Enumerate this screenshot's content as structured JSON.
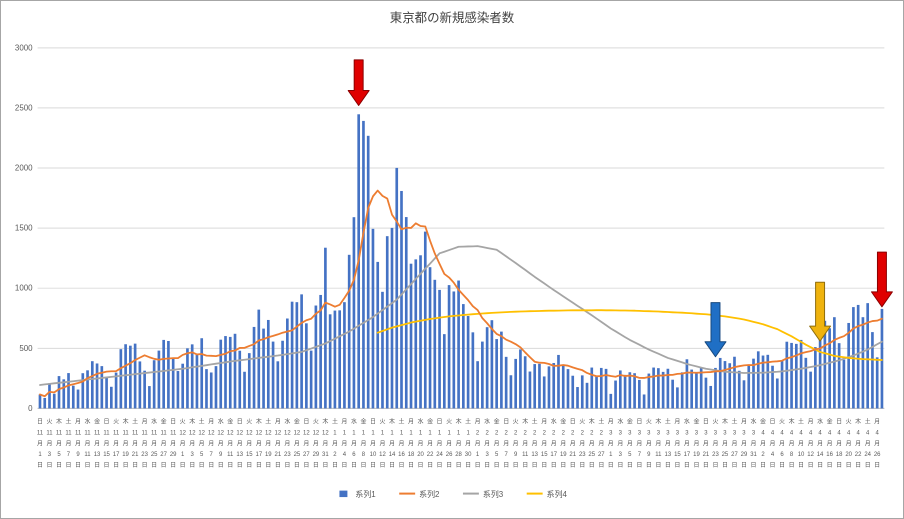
{
  "chart_data": {
    "type": "combo-bar-line",
    "title": "東京都の新規感染者数",
    "legend_position": "bottom",
    "grid": true,
    "y_axis": {
      "min": 0,
      "max": 3000,
      "tick": 500,
      "tick_labels": [
        "0",
        "500",
        "1000",
        "1500",
        "2000",
        "2500",
        "3000"
      ]
    },
    "x_axis": {
      "label_every_days": 2,
      "weekday_chars": [
        "日",
        "月",
        "火",
        "水",
        "木",
        "金",
        "土"
      ],
      "start_weekday_index": 0,
      "month_suffix": "月",
      "day_suffix": "日",
      "months": [
        {
          "m": 11,
          "days": 30
        },
        {
          "m": 12,
          "days": 31
        },
        {
          "m": 1,
          "days": 31
        },
        {
          "m": 2,
          "days": 28
        },
        {
          "m": 3,
          "days": 31
        },
        {
          "m": 4,
          "days": 27
        }
      ]
    },
    "series": [
      {
        "name": "系列1",
        "type": "bar",
        "marker": "square",
        "color": "#4472C4",
        "values": [
          116,
          87,
          209,
          122,
          269,
          242,
          294,
          189,
          157,
          293,
          317,
          393,
          374,
          352,
          255,
          180,
          298,
          493,
          534,
          522,
          539,
          391,
          314,
          186,
          401,
          481,
          570,
          561,
          418,
          311,
          372,
          500,
          533,
          449,
          584,
          327,
          299,
          352,
          572,
          602,
          595,
          621,
          480,
          305,
          460,
          678,
          822,
          664,
          736,
          556,
          392,
          563,
          748,
          888,
          884,
          949,
          708,
          481,
          856,
          944,
          1337,
          783,
          814,
          816,
          884,
          1278,
          1591,
          2447,
          2392,
          2268,
          1494,
          1219,
          970,
          1433,
          1502,
          2001,
          1809,
          1592,
          1204,
          1240,
          1274,
          1471,
          1175,
          1070,
          986,
          618,
          1026,
          973,
          1064,
          868,
          769,
          633,
          393,
          556,
          676,
          734,
          577,
          639,
          429,
          276,
          412,
          491,
          434,
          307,
          369,
          371,
          266,
          350,
          378,
          445,
          353,
          327,
          272,
          178,
          275,
          213,
          340,
          270,
          337,
          329,
          121,
          232,
          316,
          279,
          301,
          293,
          237,
          116,
          290,
          340,
          335,
          304,
          330,
          239,
          175,
          300,
          409,
          323,
          303,
          342,
          256,
          187,
          337,
          420,
          394,
          376,
          430,
          313,
          234,
          364,
          414,
          475,
          440,
          446,
          355,
          249,
          399,
          555,
          545,
          537,
          570,
          421,
          306,
          510,
          591,
          729,
          667,
          759,
          543,
          405,
          711,
          843,
          861,
          759,
          876,
          635,
          425,
          828
        ]
      },
      {
        "name": "系列2",
        "type": "line",
        "marker": "line",
        "color": "#ED7D31",
        "derived": "7-day moving average of 系列1"
      },
      {
        "name": "系列3",
        "type": "line",
        "marker": "line",
        "color": "#A5A5A5",
        "control_points": [
          [
            0,
            195
          ],
          [
            10,
            240
          ],
          [
            20,
            285
          ],
          [
            30,
            330
          ],
          [
            40,
            390
          ],
          [
            50,
            440
          ],
          [
            55,
            470
          ],
          [
            60,
            540
          ],
          [
            65,
            640
          ],
          [
            70,
            760
          ],
          [
            75,
            905
          ],
          [
            80,
            1120
          ],
          [
            84,
            1290
          ],
          [
            88,
            1345
          ],
          [
            92,
            1350
          ],
          [
            96,
            1320
          ],
          [
            100,
            1210
          ],
          [
            104,
            1095
          ],
          [
            108,
            985
          ],
          [
            112,
            880
          ],
          [
            116,
            775
          ],
          [
            120,
            665
          ],
          [
            124,
            570
          ],
          [
            128,
            490
          ],
          [
            132,
            420
          ],
          [
            136,
            370
          ],
          [
            140,
            330
          ],
          [
            144,
            305
          ],
          [
            148,
            295
          ],
          [
            152,
            297
          ],
          [
            156,
            308
          ],
          [
            160,
            330
          ],
          [
            164,
            360
          ],
          [
            168,
            400
          ],
          [
            171,
            440
          ],
          [
            174,
            490
          ],
          [
            177,
            555
          ]
        ]
      },
      {
        "name": "系列4",
        "type": "line",
        "marker": "line",
        "color": "#FFC000",
        "control_points": [
          [
            71,
            630
          ],
          [
            74,
            672
          ],
          [
            78,
            714
          ],
          [
            82,
            744
          ],
          [
            86,
            766
          ],
          [
            90,
            781
          ],
          [
            95,
            795
          ],
          [
            100,
            805
          ],
          [
            106,
            812
          ],
          [
            112,
            816
          ],
          [
            118,
            817
          ],
          [
            124,
            814
          ],
          [
            130,
            806
          ],
          [
            136,
            794
          ],
          [
            140,
            783
          ],
          [
            144,
            766
          ],
          [
            148,
            740
          ],
          [
            152,
            700
          ],
          [
            155,
            660
          ],
          [
            158,
            600
          ],
          [
            161,
            530
          ],
          [
            164,
            470
          ],
          [
            167,
            437
          ],
          [
            170,
            420
          ],
          [
            173,
            410
          ],
          [
            177,
            403
          ]
        ]
      }
    ],
    "annotations": [
      {
        "name": "red-arrow-peak",
        "shape": "down-arrow",
        "fill": "#E00000",
        "stroke": "#8B0000",
        "day": 67,
        "top_value": 2900,
        "tip_value": 2520
      },
      {
        "name": "blue-arrow",
        "shape": "down-arrow",
        "fill": "#1F6FC5",
        "stroke": "#17497F",
        "day": 142,
        "top_value": 880,
        "tip_value": 430
      },
      {
        "name": "gold-arrow",
        "shape": "down-arrow",
        "fill": "#EFB30E",
        "stroke": "#8F6D0C",
        "day": 164,
        "top_value": 1050,
        "tip_value": 560
      },
      {
        "name": "red-arrow-right",
        "shape": "down-arrow",
        "fill": "#E00000",
        "stroke": "#8B0000",
        "day": 177,
        "top_value": 1300,
        "tip_value": 845
      }
    ],
    "colors": {
      "grid": "#D9D9D9",
      "axis": "#BFBFBF",
      "text": "#595959",
      "title_text": "#404040"
    }
  }
}
